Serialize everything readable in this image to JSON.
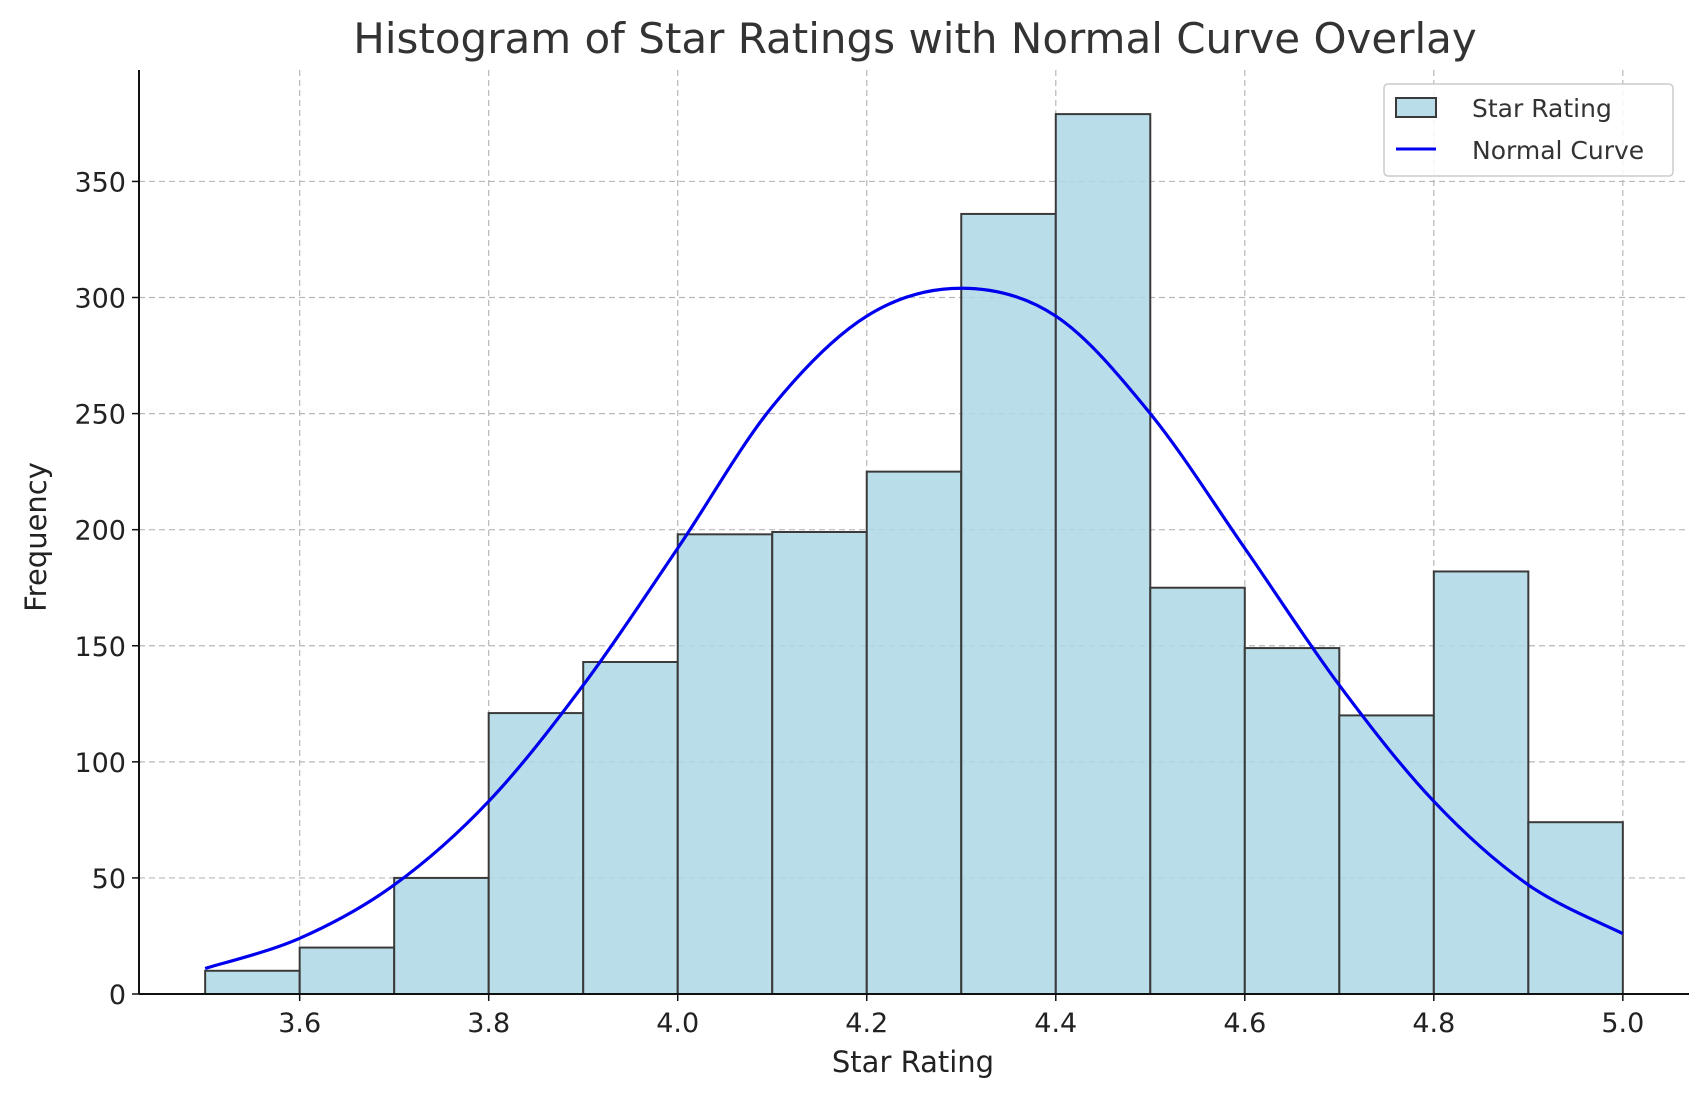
{
  "chart_data": {
    "type": "bar",
    "title": "Histogram of Star Ratings with Normal Curve Overlay",
    "xlabel": "Star Rating",
    "ylabel": "Frequency",
    "xlim": [
      3.43,
      5.07
    ],
    "ylim": [
      0,
      398
    ],
    "x_ticks": [
      3.6,
      3.8,
      4.0,
      4.2,
      4.4,
      4.6,
      4.8,
      5.0
    ],
    "x_tick_labels": [
      "3.6",
      "3.8",
      "4.0",
      "4.2",
      "4.4",
      "4.6",
      "4.8",
      "5.0"
    ],
    "y_ticks": [
      0,
      50,
      100,
      150,
      200,
      250,
      300,
      350
    ],
    "y_tick_labels": [
      "0",
      "50",
      "100",
      "150",
      "200",
      "250",
      "300",
      "350"
    ],
    "grid": true,
    "legend_position": "top-right",
    "series": [
      {
        "name": "Star Rating",
        "kind": "histogram",
        "color": "#add8e6",
        "edge_color": "#3a3a3a",
        "bin_edges": [
          3.5,
          3.6,
          3.7,
          3.8,
          3.9,
          4.0,
          4.1,
          4.2,
          4.3,
          4.4,
          4.5,
          4.6,
          4.7,
          4.8,
          4.9,
          5.0
        ],
        "values": [
          10,
          20,
          50,
          121,
          143,
          198,
          199,
          225,
          336,
          379,
          175,
          149,
          120,
          182,
          74
        ]
      },
      {
        "name": "Normal Curve",
        "kind": "line",
        "color": "#0000ee",
        "x": [
          3.5,
          3.6,
          3.7,
          3.8,
          3.9,
          4.0,
          4.1,
          4.2,
          4.3,
          4.4,
          4.5,
          4.6,
          4.7,
          4.8,
          4.9,
          5.0
        ],
        "values": [
          11,
          24,
          47,
          83,
          133,
          192,
          253,
          292,
          304,
          292,
          250,
          192,
          133,
          83,
          47,
          26
        ]
      }
    ]
  }
}
